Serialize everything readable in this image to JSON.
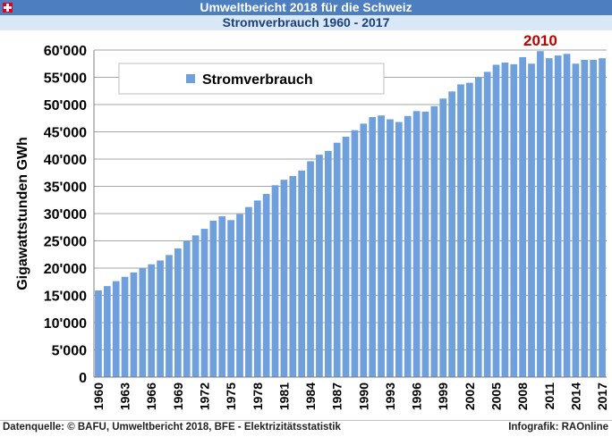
{
  "header": {
    "title": "Umweltbericht 2018 für die Schweiz",
    "subtitle": "Stromverbrauch 1960 - 2017",
    "flag_icon": "swiss-flag-icon"
  },
  "footer": {
    "source": "Datenquelle: © BAFU, Umweltbericht 2018, BFE - Elektrizitätsstatistik",
    "credit": "Infografik: RAOnline"
  },
  "colors": {
    "header_bg": "#4d7fc0",
    "subheader_bg": "#d9e8f6",
    "bar": "#6fa0dc",
    "annotation": "#c00000"
  },
  "chart_data": {
    "type": "bar",
    "ylabel": "Gigawattstunden GWh",
    "ylim": [
      0,
      60000
    ],
    "ytick_labels": [
      "0",
      "5'000",
      "10'000",
      "15'000",
      "20'000",
      "25'000",
      "30'000",
      "35'000",
      "40'000",
      "45'000",
      "50'000",
      "55'000",
      "60'000"
    ],
    "xtick_labels": [
      "1960",
      "1963",
      "1966",
      "1969",
      "1972",
      "1975",
      "1978",
      "1981",
      "1984",
      "1987",
      "1990",
      "1993",
      "1996",
      "1999",
      "2002",
      "2005",
      "2008",
      "2011",
      "2014",
      "2017"
    ],
    "legend": [
      "Stromverbrauch"
    ],
    "legend_position": "top-left",
    "annotation": "2010",
    "categories": [
      "1960",
      "1961",
      "1962",
      "1963",
      "1964",
      "1965",
      "1966",
      "1967",
      "1968",
      "1969",
      "1970",
      "1971",
      "1972",
      "1973",
      "1974",
      "1975",
      "1976",
      "1977",
      "1978",
      "1979",
      "1980",
      "1981",
      "1982",
      "1983",
      "1984",
      "1985",
      "1986",
      "1987",
      "1988",
      "1989",
      "1990",
      "1991",
      "1992",
      "1993",
      "1994",
      "1995",
      "1996",
      "1997",
      "1998",
      "1999",
      "2000",
      "2001",
      "2002",
      "2003",
      "2004",
      "2005",
      "2006",
      "2007",
      "2008",
      "2009",
      "2010",
      "2011",
      "2012",
      "2013",
      "2014",
      "2015",
      "2016",
      "2017"
    ],
    "series": [
      {
        "name": "Stromverbrauch",
        "values": [
          15900,
          16700,
          17600,
          18400,
          19200,
          20000,
          20700,
          21400,
          22400,
          23600,
          25000,
          26000,
          27200,
          28700,
          29500,
          28800,
          29900,
          31200,
          32400,
          33600,
          35200,
          36200,
          36900,
          37900,
          39600,
          40800,
          41500,
          43000,
          44100,
          45300,
          46500,
          47700,
          48000,
          47300,
          46800,
          47900,
          48800,
          48700,
          49700,
          51100,
          52400,
          53700,
          54000,
          55000,
          56000,
          57300,
          57700,
          57400,
          58700,
          57500,
          59800,
          58500,
          59000,
          59300,
          57500,
          58200,
          58200,
          58500
        ]
      }
    ]
  }
}
